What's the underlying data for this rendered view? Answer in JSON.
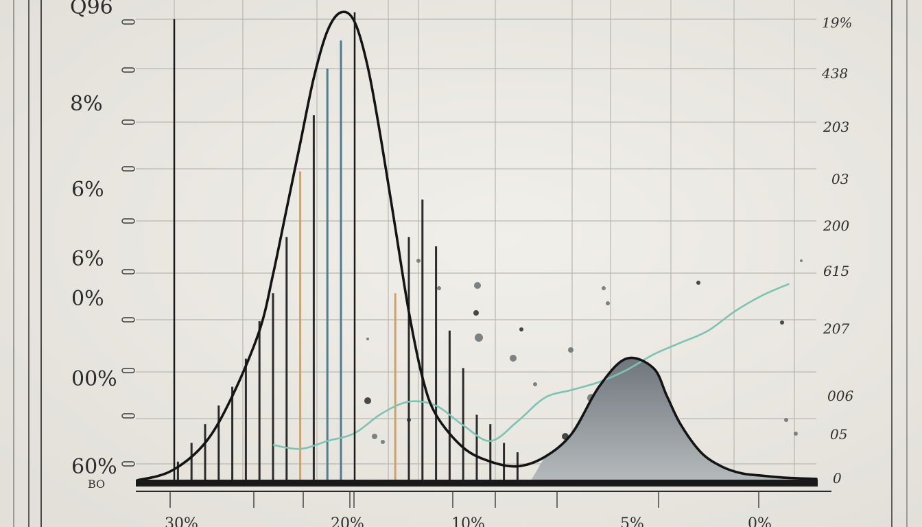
{
  "chart_data": {
    "type": "line",
    "title": "",
    "xlabel": "",
    "ylabel": "",
    "left_ticks": [
      "Q96",
      "8%",
      "6%",
      "6%",
      "0%",
      "00%",
      "60%"
    ],
    "left_extra_tick": "BO",
    "right_ticks": [
      "19%",
      "438",
      "203",
      "03",
      "200",
      "615",
      "207",
      "006",
      "05",
      "0"
    ],
    "bottom_ticks": [
      "30%",
      "20%",
      "10%",
      "5%",
      "0%"
    ],
    "grid": true,
    "ylim": [
      0,
      100
    ],
    "xlim": [
      0,
      100
    ],
    "series": [
      {
        "kind": "curve",
        "x": [
          0,
          5,
          10,
          14,
          18,
          20,
          22,
          24,
          26,
          28,
          30,
          32,
          34,
          36,
          38,
          40,
          42,
          44,
          48,
          52,
          56,
          60,
          64,
          68,
          72,
          76,
          78,
          80,
          83,
          86,
          89,
          92,
          95,
          98,
          100
        ],
        "y": [
          0,
          2,
          8,
          18,
          32,
          44,
          58,
          72,
          86,
          96,
          100,
          98,
          88,
          72,
          54,
          36,
          22,
          14,
          7,
          4,
          3,
          5,
          10,
          20,
          26,
          24,
          18,
          12,
          6,
          3,
          1.5,
          1,
          0.6,
          0.4,
          0.3
        ]
      },
      {
        "kind": "trend",
        "x": [
          20,
          24,
          28,
          32,
          36,
          40,
          44,
          48,
          52,
          56,
          60,
          64,
          68,
          72,
          76,
          80,
          84,
          88,
          92,
          96
        ],
        "y": [
          18,
          16,
          20,
          24,
          34,
          40,
          38,
          28,
          20,
          30,
          42,
          46,
          50,
          56,
          64,
          70,
          76,
          86,
          94,
          100
        ]
      }
    ],
    "bars": {
      "x": [
        6,
        8,
        10,
        12,
        14,
        16,
        18,
        20,
        22,
        24,
        26,
        28,
        30,
        38,
        40,
        42,
        44,
        46,
        48,
        50,
        52,
        54,
        56
      ],
      "values": [
        4,
        8,
        12,
        16,
        20,
        26,
        34,
        40,
        52,
        66,
        78,
        88,
        94,
        40,
        52,
        60,
        50,
        32,
        24,
        14,
        12,
        8,
        6
      ]
    },
    "colors": {
      "background": "#e9e7e1",
      "grid": "#b9b7b1",
      "curve": "#141414",
      "trend": "#7cc3b4",
      "bar": "#2b2b2b",
      "bar_tan": "#c9a46c",
      "bar_teal": "#4f7c8c",
      "shade": "#7f868c"
    }
  }
}
